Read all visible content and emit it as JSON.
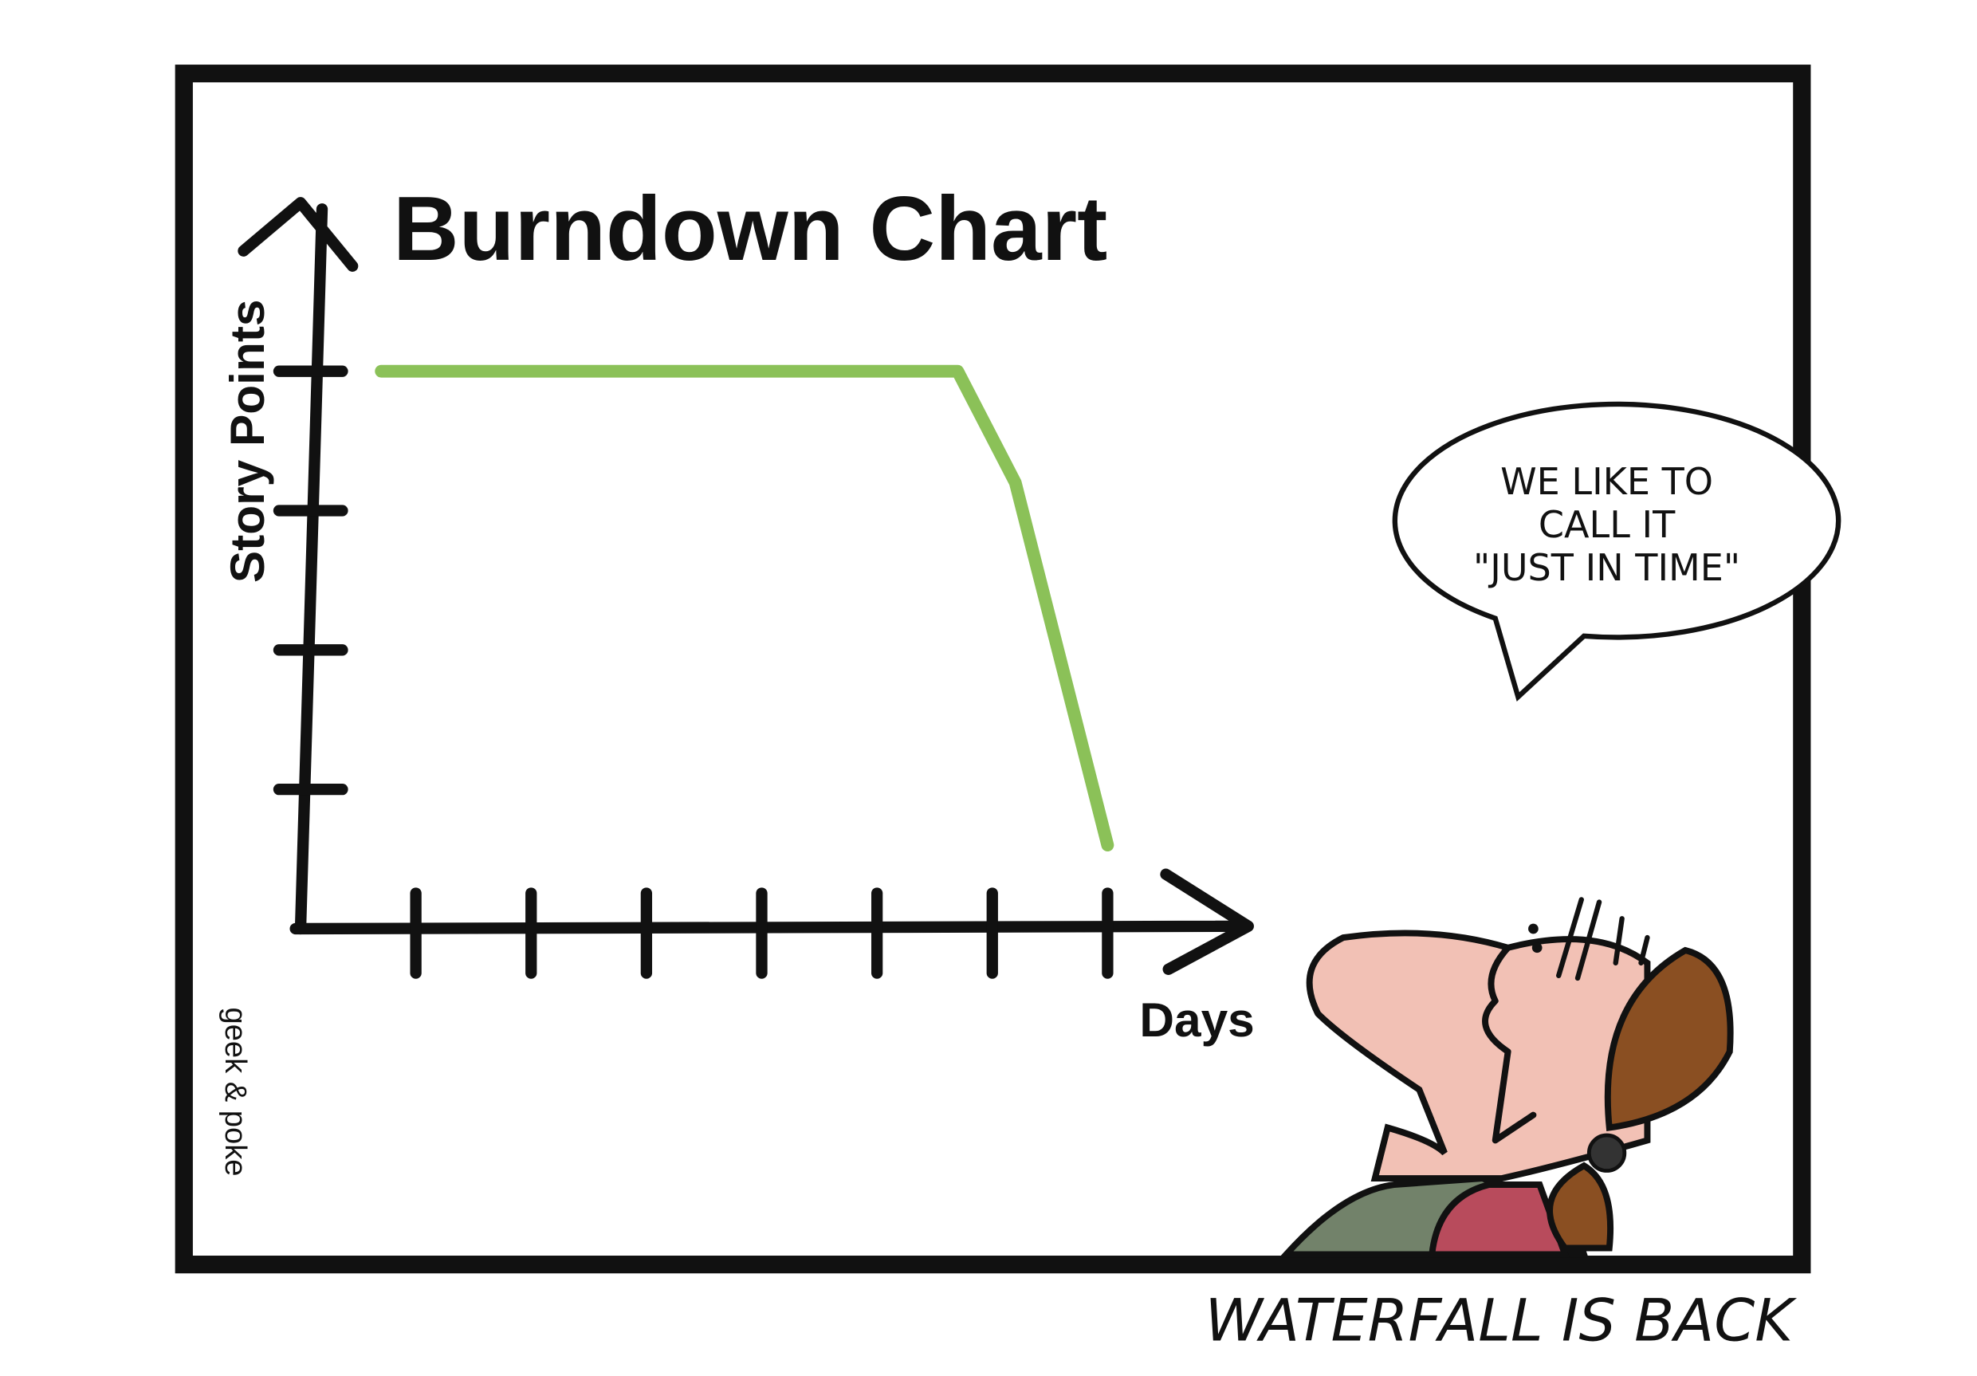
{
  "chart_data": {
    "type": "line",
    "title": "Burndown Chart",
    "y_label": "Story Points",
    "x_label": "Days",
    "x": [
      0.7,
      5.7,
      6.2,
      7.0
    ],
    "values": [
      4,
      4,
      3.2,
      0.6
    ],
    "color": "#8bc158",
    "xlim": [
      0,
      8.3
    ],
    "ylim": [
      0,
      5.2
    ],
    "xticks": [
      1,
      2,
      3,
      4,
      5,
      6,
      7
    ],
    "yticks": [
      1,
      2,
      3,
      4
    ]
  },
  "speech_bubble": {
    "lines": [
      "WE LIKE TO",
      "CALL IT",
      "\"JUST IN TIME\""
    ]
  },
  "credit": "geek & poke",
  "caption": "WATERFALL IS BACK"
}
